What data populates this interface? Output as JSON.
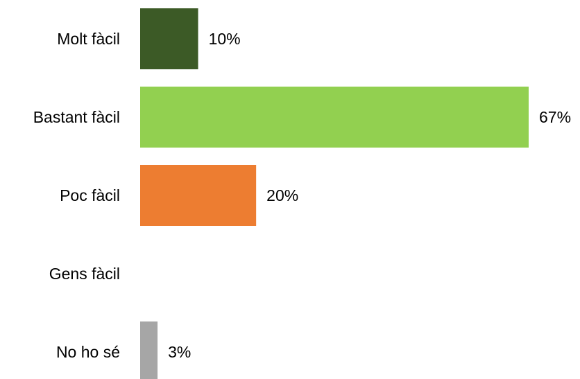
{
  "chart_data": {
    "type": "bar",
    "orientation": "horizontal",
    "title": "",
    "xlabel": "",
    "ylabel": "",
    "xlim": [
      0,
      67
    ],
    "grid": false,
    "legend": "none",
    "categories": [
      "Molt fàcil",
      "Bastant fàcil",
      "Poc fàcil",
      "Gens fàcil",
      "No ho sé"
    ],
    "values": [
      10,
      67,
      20,
      0,
      3
    ],
    "value_labels": [
      "10%",
      "67%",
      "20%",
      "",
      "3%"
    ],
    "colors": [
      "#3c5a26",
      "#92d050",
      "#ed7d31",
      "#ffffff",
      "#a6a6a6"
    ]
  }
}
